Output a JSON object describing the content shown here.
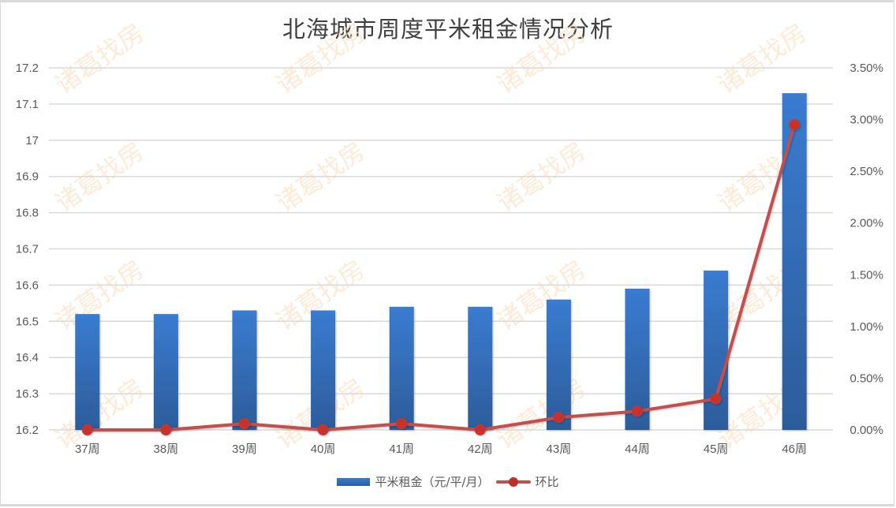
{
  "chart_data": {
    "type": "bar+line",
    "title": "北海城市周度平米租金情况分析",
    "categories": [
      "37周",
      "38周",
      "39周",
      "40周",
      "41周",
      "42周",
      "43周",
      "44周",
      "45周",
      "46周"
    ],
    "series": [
      {
        "name": "平米租金（元/平/月）",
        "type": "bar",
        "axis": "left",
        "color": "#3a7bd0",
        "values": [
          16.52,
          16.52,
          16.53,
          16.53,
          16.54,
          16.54,
          16.56,
          16.59,
          16.64,
          17.13
        ]
      },
      {
        "name": "环比",
        "type": "line",
        "axis": "right",
        "color": "#c0504d",
        "values": [
          0.0,
          0.0,
          0.06,
          0.0,
          0.06,
          0.0,
          0.12,
          0.18,
          0.3,
          2.95
        ],
        "unit": "%"
      }
    ],
    "left_axis": {
      "ylim": [
        16.2,
        17.2
      ],
      "ticks": [
        "16.2",
        "16.3",
        "16.4",
        "16.5",
        "16.6",
        "16.7",
        "16.8",
        "16.9",
        "17",
        "17.1",
        "17.2"
      ]
    },
    "right_axis": {
      "ylim": [
        0,
        3.5
      ],
      "ticks": [
        "0.00%",
        "0.50%",
        "1.00%",
        "1.50%",
        "2.00%",
        "2.50%",
        "3.00%",
        "3.50%"
      ]
    },
    "xlabel": "",
    "ylabel": "",
    "grid": true,
    "legend_position": "bottom"
  },
  "watermark": "诸葛找房",
  "legend": {
    "bar_label": "平米租金（元/平/月）",
    "line_label": "环比"
  }
}
